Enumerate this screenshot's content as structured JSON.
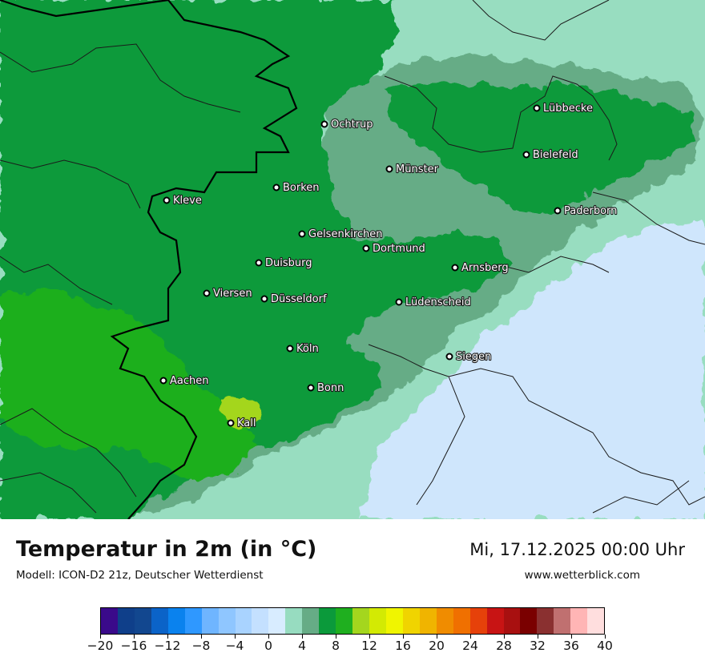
{
  "map": {
    "cities": [
      {
        "name": "Ochtrup"
      },
      {
        "name": "Lübbecke"
      },
      {
        "name": "Bielefeld"
      },
      {
        "name": "Münster"
      },
      {
        "name": "Borken"
      },
      {
        "name": "Kleve"
      },
      {
        "name": "Paderborn"
      },
      {
        "name": "Gelsenkirchen"
      },
      {
        "name": "Dortmund"
      },
      {
        "name": "Duisburg"
      },
      {
        "name": "Arnsberg"
      },
      {
        "name": "Viersen"
      },
      {
        "name": "Düsseldorf"
      },
      {
        "name": "Lüdenscheid"
      },
      {
        "name": "Köln"
      },
      {
        "name": "Siegen"
      },
      {
        "name": "Aachen"
      },
      {
        "name": "Bonn"
      },
      {
        "name": "Kall"
      }
    ],
    "colors": {
      "dark_green": "#0b9a3b",
      "mid_green": "#1faf1f",
      "light_green": "#a4d61e",
      "gray_green": "#66ac86",
      "mint": "#98ddc0",
      "pale_blue": "#cfe6fc"
    }
  },
  "footer": {
    "title": "Temperatur in 2m (in °C)",
    "model": "Modell: ICON-D2 21z, Deutscher Wetterdienst",
    "datetime": "Mi, 17.12.2025 00:00 Uhr",
    "website": "www.wetterblick.com"
  },
  "legend": {
    "colors": [
      "#3a0a8a",
      "#0f3f8a",
      "#12478f",
      "#0b63c8",
      "#0a82ee",
      "#2f98ff",
      "#6fb5ff",
      "#8fc6ff",
      "#a9d3ff",
      "#c4e0ff",
      "#d8ecff",
      "#97dcc0",
      "#66ac86",
      "#0b9a3b",
      "#1faf1f",
      "#a4d61e",
      "#d3ea03",
      "#f0f500",
      "#f0d400",
      "#f0b400",
      "#f08c00",
      "#f07000",
      "#e6410a",
      "#c81414",
      "#a81010",
      "#7a0000",
      "#8a3030",
      "#c07070",
      "#ffb5b5",
      "#ffdede"
    ],
    "tick_labels": [
      "−20",
      "−16",
      "−12",
      "−8",
      "−4",
      "0",
      "4",
      "8",
      "12",
      "16",
      "20",
      "24",
      "28",
      "32",
      "36",
      "40"
    ]
  }
}
